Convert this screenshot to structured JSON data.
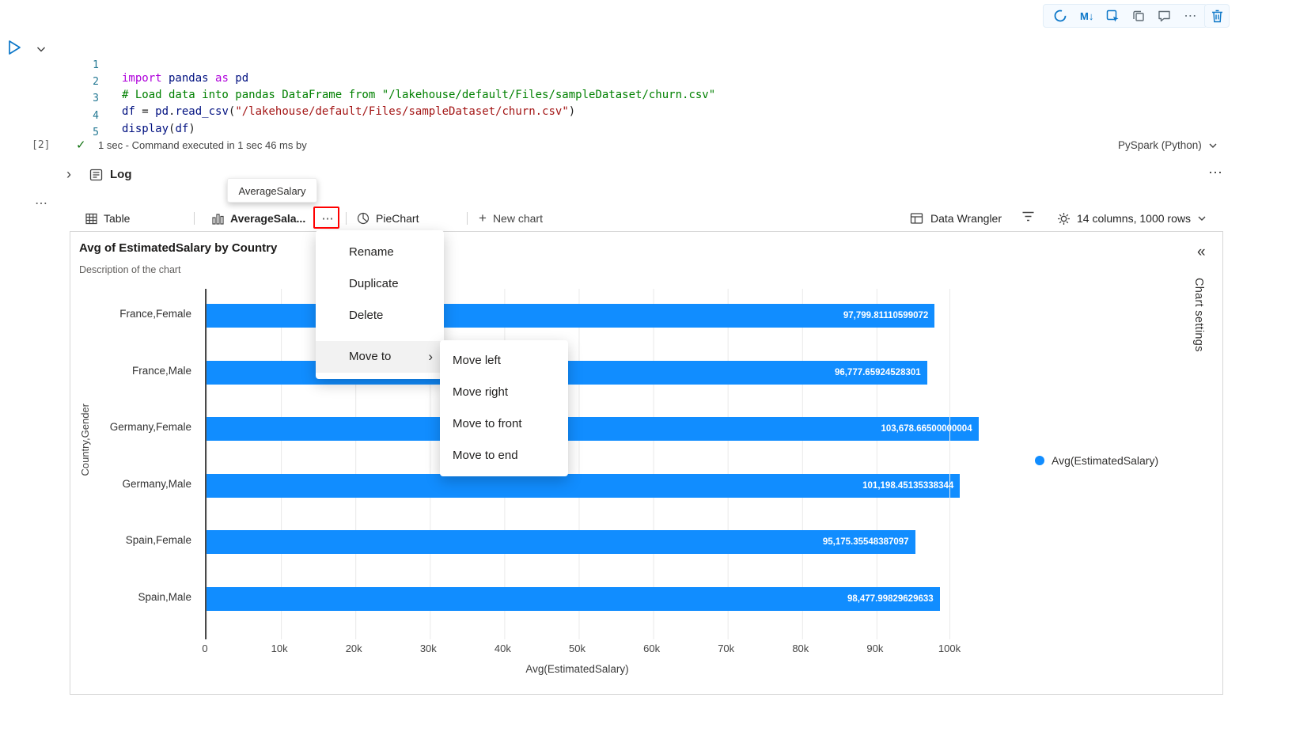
{
  "toolbar": {
    "markdown_label": "M↓",
    "ellipsis": "⋯"
  },
  "code": {
    "line_numbers": [
      "1",
      "2",
      "3",
      "4",
      "5"
    ],
    "l1": [
      "import",
      " pandas ",
      "as",
      " pd"
    ],
    "l2": "# Load data into pandas DataFrame from \"/lakehouse/default/Files/sampleDataset/churn.csv\"",
    "l3": [
      "df",
      " = ",
      "pd",
      ".",
      "read_csv",
      "(",
      "\"/lakehouse/default/Files/sampleDataset/churn.csv\"",
      ")"
    ],
    "l4": [
      "display",
      "(",
      "df",
      ")"
    ]
  },
  "status": {
    "exec_count": "[2]",
    "check": "✓",
    "message": "1 sec - Command executed in 1 sec 46 ms by",
    "kernel": "PySpark (Python)"
  },
  "log": {
    "chevron": "›",
    "label": "Log",
    "dots": "⋯",
    "left_dots": "⋯"
  },
  "tooltip": "AverageSalary",
  "tabbar": {
    "table": "Table",
    "chart_tab": "AverageSala...",
    "tab_ellipsis": "⋯",
    "pie": "PieChart",
    "plus": "+",
    "new_chart": "New chart",
    "data_wrangler": "Data Wrangler",
    "columns_info": "14 columns, 1000 rows"
  },
  "menu": {
    "items": [
      "Rename",
      "Duplicate",
      "Delete"
    ],
    "move_to": "Move to",
    "chevron": "›",
    "submenu": [
      "Move left",
      "Move right",
      "Move to front",
      "Move to end"
    ]
  },
  "panel": {
    "collapse": "«",
    "chart_settings": "Chart settings"
  },
  "chart_data": {
    "type": "bar",
    "orientation": "horizontal",
    "title": "Avg of EstimatedSalary by Country",
    "subtitle": "Description of the chart",
    "categories": [
      "France,Female",
      "France,Male",
      "Germany,Female",
      "Germany,Male",
      "Spain,Female",
      "Spain,Male"
    ],
    "values": [
      97799.81110599072,
      96777.65924528301,
      103678.66500000004,
      101198.45135338344,
      95175.35548387097,
      98477.99829629633
    ],
    "value_labels": [
      "97,799.81110599072",
      "96,777.65924528301",
      "103,678.66500000004",
      "101,198.45135338344",
      "95,175.35548387097",
      "98,477.99829629633"
    ],
    "xlabel": "Avg(EstimatedSalary)",
    "ylabel": "Country,Gender",
    "xticks": [
      "0",
      "10k",
      "20k",
      "30k",
      "40k",
      "50k",
      "60k",
      "70k",
      "80k",
      "90k",
      "100k"
    ],
    "xlim": [
      0,
      100000
    ],
    "legend": [
      "Avg(EstimatedSalary)"
    ],
    "bar_color": "#118DFF",
    "grid": true,
    "legend_position": "right"
  }
}
